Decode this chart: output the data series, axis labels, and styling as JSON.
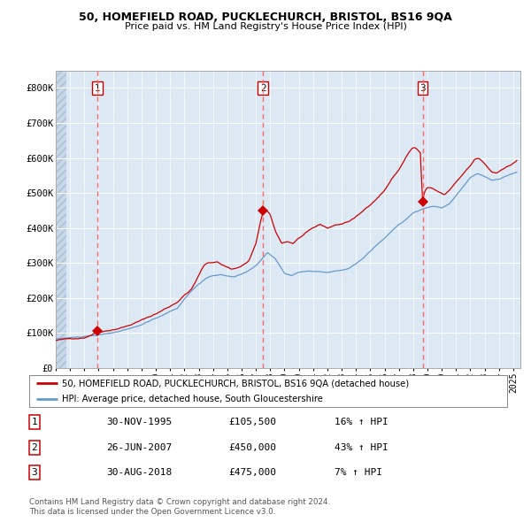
{
  "title1": "50, HOMEFIELD ROAD, PUCKLECHURCH, BRISTOL, BS16 9QA",
  "title2": "Price paid vs. HM Land Registry's House Price Index (HPI)",
  "bg_color": "#dce9f5",
  "grid_color": "#ffffff",
  "red_line_color": "#cc0000",
  "blue_line_color": "#6699cc",
  "sale_marker_color": "#cc0000",
  "dashed_line_color": "#ff6666",
  "ylim": [
    0,
    850000
  ],
  "yticks": [
    0,
    100000,
    200000,
    300000,
    400000,
    500000,
    600000,
    700000,
    800000
  ],
  "ytick_labels": [
    "£0",
    "£100K",
    "£200K",
    "£300K",
    "£400K",
    "£500K",
    "£600K",
    "£700K",
    "£800K"
  ],
  "xlim_start": 1993.0,
  "xlim_end": 2025.5,
  "sale_dates": [
    1995.92,
    2007.49,
    2018.66
  ],
  "sale_prices": [
    105500,
    450000,
    475000
  ],
  "sale_labels": [
    "1",
    "2",
    "3"
  ],
  "sale_info": [
    [
      "1",
      "30-NOV-1995",
      "£105,500",
      "16% ↑ HPI"
    ],
    [
      "2",
      "26-JUN-2007",
      "£450,000",
      "43% ↑ HPI"
    ],
    [
      "3",
      "30-AUG-2018",
      "£475,000",
      "7% ↑ HPI"
    ]
  ],
  "legend_line1": "50, HOMEFIELD ROAD, PUCKLECHURCH, BRISTOL, BS16 9QA (detached house)",
  "legend_line2": "HPI: Average price, detached house, South Gloucestershire",
  "footer1": "Contains HM Land Registry data © Crown copyright and database right 2024.",
  "footer2": "This data is licensed under the Open Government Licence v3.0."
}
